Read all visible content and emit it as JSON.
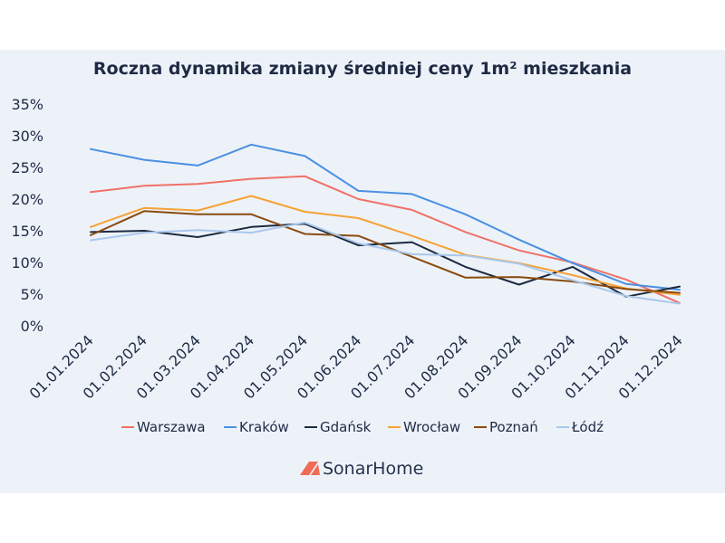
{
  "chart_data": {
    "type": "line",
    "title": "Roczna dynamika zmiany średniej ceny 1m² mieszkania",
    "xlabel": "",
    "ylabel": "",
    "ylim": [
      0,
      35
    ],
    "yticks": [
      0,
      5,
      10,
      15,
      20,
      25,
      30,
      35
    ],
    "ytick_labels": [
      "0%",
      "5%",
      "10%",
      "15%",
      "20%",
      "25%",
      "30%",
      "35%"
    ],
    "grid": false,
    "legend_position": "bottom",
    "categories": [
      "01.01.2024",
      "01.02.2024",
      "01.03.2024",
      "01.04.2024",
      "01.05.2024",
      "01.06.2024",
      "01.07.2024",
      "01.08.2024",
      "01.09.2024",
      "01.10.2024",
      "01.11.2024",
      "01.12.2024"
    ],
    "series": [
      {
        "name": "Warszawa",
        "color": "#f07167",
        "values": [
          21.1,
          22.1,
          22.4,
          23.2,
          23.6,
          20.0,
          18.3,
          14.8,
          11.9,
          10.0,
          7.3,
          3.6
        ]
      },
      {
        "name": "Kraków",
        "color": "#4a90e2",
        "values": [
          27.9,
          26.2,
          25.3,
          28.6,
          26.8,
          21.3,
          20.8,
          17.6,
          13.6,
          9.9,
          6.6,
          5.7
        ]
      },
      {
        "name": "Gdańsk",
        "color": "#1c2b40",
        "values": [
          14.8,
          15.0,
          14.0,
          15.6,
          16.1,
          12.7,
          13.2,
          9.3,
          6.5,
          9.3,
          4.6,
          6.2
        ]
      },
      {
        "name": "Wrocław",
        "color": "#f6a234",
        "values": [
          15.6,
          18.6,
          18.2,
          20.5,
          18.0,
          17.0,
          14.2,
          11.2,
          9.9,
          8.0,
          5.9,
          4.9
        ]
      },
      {
        "name": "Poznań",
        "color": "#8a4b0f",
        "values": [
          14.3,
          18.1,
          17.6,
          17.6,
          14.5,
          14.2,
          10.9,
          7.6,
          7.7,
          7.0,
          5.8,
          5.2
        ]
      },
      {
        "name": "Łódź",
        "color": "#a9c8ec",
        "values": [
          13.5,
          14.7,
          15.1,
          14.7,
          16.3,
          13.0,
          11.3,
          11.1,
          9.8,
          7.2,
          4.7,
          3.5
        ]
      }
    ]
  },
  "logo": {
    "text": "SonarHome",
    "color": "#f26b55"
  }
}
